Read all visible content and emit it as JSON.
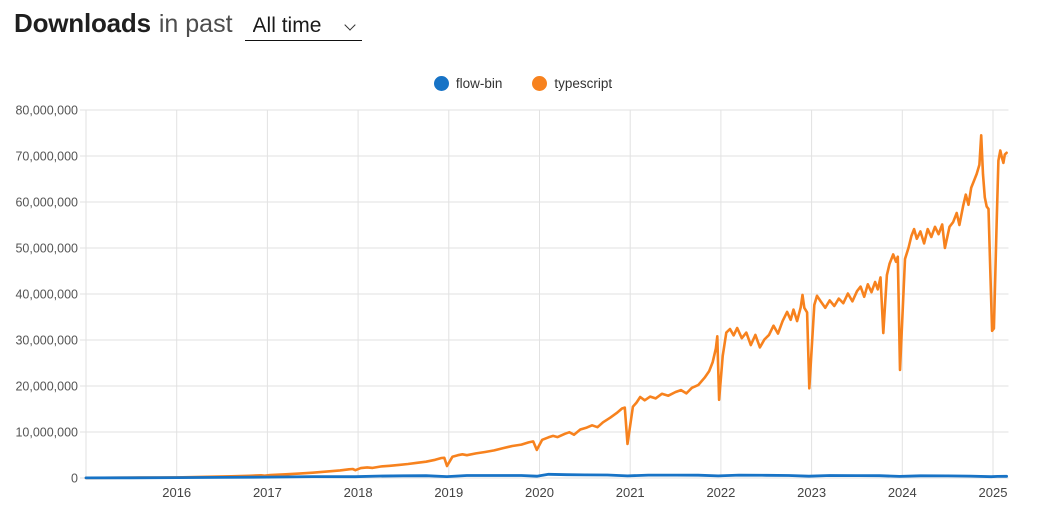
{
  "header": {
    "title_bold": "Downloads",
    "title_rest": "in past",
    "period_select": {
      "value": "All time",
      "options": [
        "All time"
      ]
    }
  },
  "legend": [
    {
      "label": "flow-bin",
      "color": "#1773c6"
    },
    {
      "label": "typescript",
      "color": "#f7821e"
    }
  ],
  "chart_data": {
    "type": "line",
    "title": "",
    "xlabel": "",
    "ylabel": "",
    "value_unit": "millions_of_downloads",
    "ylim_downloads": [
      0,
      80000000
    ],
    "x_range_years": [
      2015.0,
      2025.17
    ],
    "grid": true,
    "legend_position": "top-center",
    "colors": {
      "grid": "#e2e2e2",
      "axis_text_y": "#555555",
      "axis_text_x": "#444444"
    },
    "y_axis": {
      "tick_values_millions": [
        0,
        10,
        20,
        30,
        40,
        50,
        60,
        70,
        80
      ],
      "tick_labels": [
        "0",
        "10,000,000",
        "20,000,000",
        "30,000,000",
        "40,000,000",
        "50,000,000",
        "60,000,000",
        "70,000,000",
        "80,000,000"
      ]
    },
    "x_axis": {
      "grid_years": [
        2015,
        2016,
        2017,
        2018,
        2019,
        2020,
        2021,
        2022,
        2023,
        2024,
        2025
      ],
      "tick_years": [
        2016,
        2017,
        2018,
        2019,
        2020,
        2021,
        2022,
        2023,
        2024,
        2025
      ],
      "tick_labels": [
        "2016",
        "2017",
        "2018",
        "2019",
        "2020",
        "2021",
        "2022",
        "2023",
        "2024",
        "2025"
      ]
    },
    "series": [
      {
        "name": "flow-bin",
        "color": "#1773c6",
        "line_width": 2.8,
        "points_year_millions": [
          [
            2015.0,
            0.02
          ],
          [
            2015.5,
            0.05
          ],
          [
            2016.0,
            0.08
          ],
          [
            2016.5,
            0.14
          ],
          [
            2017.0,
            0.2
          ],
          [
            2017.5,
            0.3
          ],
          [
            2017.97,
            0.28
          ],
          [
            2018.2,
            0.42
          ],
          [
            2018.5,
            0.48
          ],
          [
            2018.75,
            0.5
          ],
          [
            2018.98,
            0.3
          ],
          [
            2019.2,
            0.55
          ],
          [
            2019.5,
            0.55
          ],
          [
            2019.8,
            0.55
          ],
          [
            2019.97,
            0.4
          ],
          [
            2020.1,
            0.8
          ],
          [
            2020.3,
            0.72
          ],
          [
            2020.5,
            0.68
          ],
          [
            2020.75,
            0.65
          ],
          [
            2020.97,
            0.45
          ],
          [
            2021.2,
            0.62
          ],
          [
            2021.5,
            0.62
          ],
          [
            2021.75,
            0.6
          ],
          [
            2021.97,
            0.45
          ],
          [
            2022.2,
            0.62
          ],
          [
            2022.5,
            0.58
          ],
          [
            2022.75,
            0.55
          ],
          [
            2022.97,
            0.4
          ],
          [
            2023.2,
            0.55
          ],
          [
            2023.5,
            0.52
          ],
          [
            2023.75,
            0.5
          ],
          [
            2023.97,
            0.35
          ],
          [
            2024.2,
            0.48
          ],
          [
            2024.5,
            0.45
          ],
          [
            2024.75,
            0.42
          ],
          [
            2024.98,
            0.28
          ],
          [
            2025.05,
            0.35
          ],
          [
            2025.15,
            0.38
          ]
        ]
      },
      {
        "name": "typescript",
        "color": "#f7821e",
        "line_width": 2.6,
        "points_year_millions": [
          [
            2015.0,
            0.02
          ],
          [
            2015.2,
            0.04
          ],
          [
            2015.4,
            0.06
          ],
          [
            2015.6,
            0.08
          ],
          [
            2015.8,
            0.1
          ],
          [
            2015.96,
            0.12
          ],
          [
            2016.0,
            0.14
          ],
          [
            2016.2,
            0.2
          ],
          [
            2016.4,
            0.28
          ],
          [
            2016.6,
            0.36
          ],
          [
            2016.8,
            0.48
          ],
          [
            2016.93,
            0.58
          ],
          [
            2016.97,
            0.5
          ],
          [
            2017.03,
            0.65
          ],
          [
            2017.2,
            0.8
          ],
          [
            2017.35,
            0.95
          ],
          [
            2017.5,
            1.15
          ],
          [
            2017.65,
            1.4
          ],
          [
            2017.8,
            1.65
          ],
          [
            2017.9,
            1.9
          ],
          [
            2017.94,
            1.95
          ],
          [
            2017.97,
            1.7
          ],
          [
            2018.03,
            2.15
          ],
          [
            2018.1,
            2.3
          ],
          [
            2018.16,
            2.2
          ],
          [
            2018.25,
            2.5
          ],
          [
            2018.35,
            2.65
          ],
          [
            2018.45,
            2.85
          ],
          [
            2018.55,
            3.05
          ],
          [
            2018.65,
            3.3
          ],
          [
            2018.75,
            3.55
          ],
          [
            2018.85,
            3.95
          ],
          [
            2018.92,
            4.35
          ],
          [
            2018.95,
            4.4
          ],
          [
            2018.98,
            2.6
          ],
          [
            2019.04,
            4.6
          ],
          [
            2019.1,
            4.95
          ],
          [
            2019.15,
            5.15
          ],
          [
            2019.2,
            4.95
          ],
          [
            2019.3,
            5.35
          ],
          [
            2019.4,
            5.65
          ],
          [
            2019.5,
            6.0
          ],
          [
            2019.6,
            6.5
          ],
          [
            2019.7,
            6.95
          ],
          [
            2019.8,
            7.25
          ],
          [
            2019.88,
            7.75
          ],
          [
            2019.93,
            7.95
          ],
          [
            2019.97,
            6.1
          ],
          [
            2020.03,
            8.3
          ],
          [
            2020.1,
            8.85
          ],
          [
            2020.15,
            9.15
          ],
          [
            2020.2,
            8.9
          ],
          [
            2020.28,
            9.6
          ],
          [
            2020.33,
            9.95
          ],
          [
            2020.38,
            9.4
          ],
          [
            2020.45,
            10.55
          ],
          [
            2020.52,
            10.95
          ],
          [
            2020.58,
            11.45
          ],
          [
            2020.64,
            11.05
          ],
          [
            2020.7,
            12.1
          ],
          [
            2020.78,
            13.1
          ],
          [
            2020.85,
            14.1
          ],
          [
            2020.91,
            15.1
          ],
          [
            2020.94,
            15.3
          ],
          [
            2020.97,
            7.4
          ],
          [
            2021.03,
            15.5
          ],
          [
            2021.07,
            16.4
          ],
          [
            2021.11,
            17.6
          ],
          [
            2021.16,
            16.9
          ],
          [
            2021.22,
            17.7
          ],
          [
            2021.28,
            17.3
          ],
          [
            2021.35,
            18.3
          ],
          [
            2021.42,
            17.9
          ],
          [
            2021.5,
            18.7
          ],
          [
            2021.56,
            19.1
          ],
          [
            2021.62,
            18.4
          ],
          [
            2021.68,
            19.6
          ],
          [
            2021.75,
            20.2
          ],
          [
            2021.82,
            21.8
          ],
          [
            2021.87,
            23.2
          ],
          [
            2021.91,
            25.2
          ],
          [
            2021.945,
            28.2
          ],
          [
            2021.96,
            30.8
          ],
          [
            2021.98,
            17.0
          ],
          [
            2022.02,
            26.5
          ],
          [
            2022.06,
            31.6
          ],
          [
            2022.1,
            32.4
          ],
          [
            2022.14,
            31.0
          ],
          [
            2022.18,
            32.6
          ],
          [
            2022.23,
            30.4
          ],
          [
            2022.28,
            31.6
          ],
          [
            2022.33,
            28.9
          ],
          [
            2022.38,
            31.1
          ],
          [
            2022.43,
            28.4
          ],
          [
            2022.48,
            30.1
          ],
          [
            2022.53,
            31.1
          ],
          [
            2022.58,
            33.1
          ],
          [
            2022.63,
            31.4
          ],
          [
            2022.68,
            34.1
          ],
          [
            2022.73,
            36.1
          ],
          [
            2022.77,
            34.4
          ],
          [
            2022.8,
            36.6
          ],
          [
            2022.84,
            34.1
          ],
          [
            2022.88,
            37.1
          ],
          [
            2022.9,
            39.8
          ],
          [
            2022.92,
            37.0
          ],
          [
            2022.95,
            36.0
          ],
          [
            2022.975,
            19.5
          ],
          [
            2023.03,
            37.6
          ],
          [
            2023.06,
            39.6
          ],
          [
            2023.1,
            38.4
          ],
          [
            2023.15,
            37.0
          ],
          [
            2023.2,
            38.6
          ],
          [
            2023.25,
            37.4
          ],
          [
            2023.3,
            39.0
          ],
          [
            2023.35,
            38.0
          ],
          [
            2023.4,
            40.1
          ],
          [
            2023.45,
            38.4
          ],
          [
            2023.5,
            40.6
          ],
          [
            2023.54,
            41.6
          ],
          [
            2023.58,
            39.4
          ],
          [
            2023.62,
            42.1
          ],
          [
            2023.66,
            40.4
          ],
          [
            2023.7,
            42.6
          ],
          [
            2023.73,
            41.0
          ],
          [
            2023.76,
            43.6
          ],
          [
            2023.79,
            31.5
          ],
          [
            2023.83,
            44.1
          ],
          [
            2023.86,
            46.6
          ],
          [
            2023.9,
            48.6
          ],
          [
            2023.93,
            47.0
          ],
          [
            2023.95,
            48.1
          ],
          [
            2023.975,
            23.5
          ],
          [
            2024.03,
            47.6
          ],
          [
            2024.07,
            50.1
          ],
          [
            2024.1,
            52.6
          ],
          [
            2024.13,
            54.1
          ],
          [
            2024.16,
            52.0
          ],
          [
            2024.2,
            53.6
          ],
          [
            2024.24,
            51.0
          ],
          [
            2024.28,
            54.1
          ],
          [
            2024.32,
            52.4
          ],
          [
            2024.36,
            54.6
          ],
          [
            2024.4,
            53.0
          ],
          [
            2024.44,
            55.1
          ],
          [
            2024.47,
            50.0
          ],
          [
            2024.52,
            54.6
          ],
          [
            2024.56,
            55.6
          ],
          [
            2024.6,
            57.6
          ],
          [
            2024.63,
            55.0
          ],
          [
            2024.67,
            59.1
          ],
          [
            2024.7,
            61.6
          ],
          [
            2024.73,
            59.4
          ],
          [
            2024.76,
            63.1
          ],
          [
            2024.79,
            64.6
          ],
          [
            2024.82,
            66.1
          ],
          [
            2024.85,
            68.1
          ],
          [
            2024.87,
            74.5
          ],
          [
            2024.89,
            66.0
          ],
          [
            2024.91,
            61.0
          ],
          [
            2024.93,
            59.0
          ],
          [
            2024.95,
            58.5
          ],
          [
            2024.97,
            45.0
          ],
          [
            2024.99,
            32.0
          ],
          [
            2025.01,
            32.5
          ],
          [
            2025.04,
            55.0
          ],
          [
            2025.06,
            69.0
          ],
          [
            2025.08,
            71.2
          ],
          [
            2025.1,
            69.5
          ],
          [
            2025.115,
            68.5
          ],
          [
            2025.13,
            70.3
          ],
          [
            2025.15,
            70.7
          ]
        ]
      }
    ]
  }
}
